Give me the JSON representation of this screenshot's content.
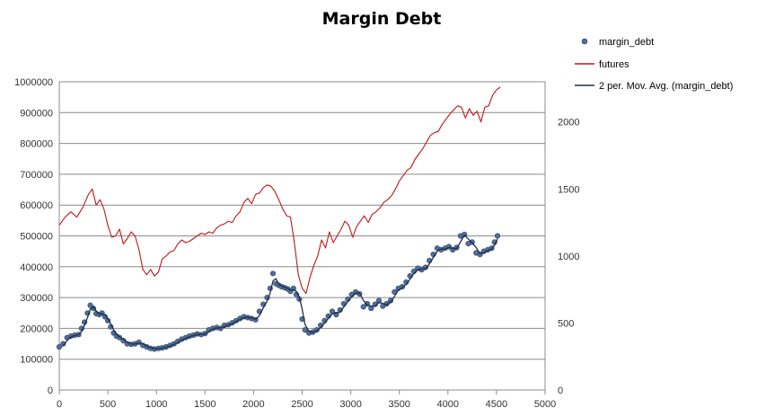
{
  "chart_data": {
    "type": "line",
    "title": "Margin Debt",
    "xlabel": "",
    "ylabel": "",
    "xlim": [
      0,
      5000
    ],
    "ylim": [
      0,
      1000000
    ],
    "y2lim": [
      0,
      2300
    ],
    "x_ticks": [
      "0",
      "500",
      "1000",
      "1500",
      "2000",
      "2500",
      "3000",
      "3500",
      "4000",
      "4500",
      "5000"
    ],
    "y_ticks": [
      "0",
      "100000",
      "200000",
      "300000",
      "400000",
      "500000",
      "600000",
      "700000",
      "800000",
      "900000",
      "1000000"
    ],
    "y2_ticks": [
      "0",
      "500",
      "1000",
      "1500",
      "2000"
    ],
    "grid": true,
    "legend_position": "top-right",
    "series": [
      {
        "name": "margin_debt",
        "axis": "left",
        "style": "markers",
        "color": "#4f6e99",
        "x": [
          0,
          40,
          80,
          120,
          160,
          200,
          230,
          260,
          290,
          320,
          350,
          380,
          410,
          440,
          470,
          500,
          530,
          560,
          590,
          620,
          660,
          700,
          740,
          780,
          820,
          860,
          900,
          940,
          980,
          1020,
          1060,
          1100,
          1140,
          1180,
          1220,
          1260,
          1300,
          1340,
          1380,
          1420,
          1460,
          1500,
          1540,
          1580,
          1620,
          1660,
          1700,
          1740,
          1780,
          1820,
          1860,
          1900,
          1940,
          1980,
          2020,
          2060,
          2100,
          2140,
          2170,
          2200,
          2230,
          2260,
          2290,
          2320,
          2350,
          2380,
          2410,
          2440,
          2470,
          2500,
          2530,
          2570,
          2610,
          2650,
          2690,
          2730,
          2770,
          2810,
          2850,
          2890,
          2930,
          2970,
          3010,
          3050,
          3090,
          3130,
          3170,
          3210,
          3250,
          3290,
          3330,
          3370,
          3410,
          3450,
          3490,
          3530,
          3570,
          3610,
          3650,
          3690,
          3730,
          3770,
          3810,
          3850,
          3890,
          3930,
          3970,
          4010,
          4050,
          4090,
          4130,
          4170,
          4210,
          4250,
          4290,
          4330,
          4370,
          4410,
          4450,
          4480,
          4510
        ],
        "values": [
          140000,
          150000,
          170000,
          175000,
          178000,
          180000,
          200000,
          220000,
          250000,
          275000,
          265000,
          248000,
          245000,
          250000,
          238000,
          225000,
          205000,
          185000,
          175000,
          170000,
          160000,
          150000,
          148000,
          150000,
          155000,
          145000,
          140000,
          135000,
          133000,
          135000,
          137000,
          140000,
          145000,
          150000,
          158000,
          165000,
          170000,
          175000,
          178000,
          182000,
          180000,
          183000,
          195000,
          200000,
          203000,
          200000,
          210000,
          212000,
          218000,
          225000,
          232000,
          238000,
          235000,
          232000,
          228000,
          255000,
          278000,
          300000,
          330000,
          378000,
          345000,
          340000,
          335000,
          332000,
          328000,
          320000,
          330000,
          310000,
          295000,
          230000,
          195000,
          185000,
          188000,
          195000,
          210000,
          225000,
          240000,
          255000,
          245000,
          260000,
          280000,
          295000,
          310000,
          318000,
          312000,
          270000,
          280000,
          265000,
          278000,
          290000,
          272000,
          280000,
          290000,
          318000,
          330000,
          335000,
          350000,
          370000,
          385000,
          395000,
          390000,
          398000,
          420000,
          440000,
          460000,
          455000,
          460000,
          465000,
          455000,
          462000,
          500000,
          505000,
          475000,
          480000,
          445000,
          440000,
          450000,
          455000,
          460000,
          480000,
          500000
        ]
      },
      {
        "name": "futures",
        "axis": "right",
        "style": "line",
        "color": "#c0161b",
        "x": [
          0,
          60,
          120,
          180,
          240,
          300,
          340,
          380,
          420,
          460,
          500,
          540,
          580,
          620,
          660,
          700,
          740,
          780,
          820,
          860,
          900,
          940,
          980,
          1020,
          1060,
          1100,
          1140,
          1180,
          1220,
          1260,
          1300,
          1340,
          1380,
          1420,
          1460,
          1500,
          1540,
          1580,
          1620,
          1660,
          1700,
          1740,
          1780,
          1820,
          1860,
          1900,
          1940,
          1980,
          2020,
          2060,
          2100,
          2140,
          2180,
          2220,
          2260,
          2300,
          2340,
          2380,
          2420,
          2460,
          2500,
          2540,
          2580,
          2620,
          2660,
          2700,
          2740,
          2780,
          2820,
          2860,
          2900,
          2940,
          2980,
          3020,
          3060,
          3100,
          3140,
          3180,
          3220,
          3260,
          3300,
          3340,
          3380,
          3420,
          3460,
          3500,
          3540,
          3580,
          3620,
          3660,
          3700,
          3740,
          3780,
          3820,
          3860,
          3900,
          3940,
          3980,
          4020,
          4060,
          4100,
          4140,
          4180,
          4220,
          4260,
          4300,
          4340,
          4380,
          4420,
          4460,
          4500,
          4540
        ],
        "values": [
          1230,
          1290,
          1330,
          1290,
          1360,
          1460,
          1500,
          1380,
          1420,
          1350,
          1230,
          1140,
          1150,
          1200,
          1090,
          1130,
          1180,
          1150,
          1050,
          900,
          860,
          900,
          850,
          880,
          980,
          1000,
          1030,
          1040,
          1090,
          1120,
          1100,
          1110,
          1130,
          1150,
          1170,
          1160,
          1180,
          1170,
          1210,
          1230,
          1240,
          1260,
          1250,
          1300,
          1330,
          1400,
          1430,
          1390,
          1460,
          1470,
          1510,
          1530,
          1520,
          1480,
          1420,
          1350,
          1300,
          1290,
          1100,
          860,
          760,
          720,
          840,
          930,
          1000,
          1120,
          1060,
          1180,
          1100,
          1150,
          1200,
          1260,
          1230,
          1140,
          1220,
          1260,
          1300,
          1250,
          1310,
          1330,
          1360,
          1400,
          1420,
          1450,
          1500,
          1560,
          1600,
          1640,
          1660,
          1720,
          1760,
          1800,
          1850,
          1900,
          1920,
          1930,
          1980,
          2020,
          2060,
          2090,
          2120,
          2110,
          2030,
          2100,
          2050,
          2080,
          2000,
          2110,
          2120,
          2200,
          2240,
          2260
        ]
      },
      {
        "name": "2 per. Mov. Avg. (margin_debt)",
        "axis": "left",
        "style": "line",
        "color": "#1f2f4a",
        "x": [
          40,
          80,
          120,
          160,
          200,
          230,
          260,
          290,
          320,
          350,
          380,
          410,
          440,
          470,
          500,
          530,
          560,
          590,
          620,
          660,
          700,
          740,
          780,
          820,
          860,
          900,
          940,
          980,
          1020,
          1060,
          1100,
          1140,
          1180,
          1220,
          1260,
          1300,
          1340,
          1380,
          1420,
          1460,
          1500,
          1540,
          1580,
          1620,
          1660,
          1700,
          1740,
          1780,
          1820,
          1860,
          1900,
          1940,
          1980,
          2020,
          2060,
          2100,
          2140,
          2170,
          2200,
          2230,
          2260,
          2290,
          2320,
          2350,
          2380,
          2410,
          2440,
          2470,
          2500,
          2530,
          2570,
          2610,
          2650,
          2690,
          2730,
          2770,
          2810,
          2850,
          2890,
          2930,
          2970,
          3010,
          3050,
          3090,
          3130,
          3170,
          3210,
          3250,
          3290,
          3330,
          3370,
          3410,
          3450,
          3490,
          3530,
          3570,
          3610,
          3650,
          3690,
          3730,
          3770,
          3810,
          3850,
          3890,
          3930,
          3970,
          4010,
          4050,
          4090,
          4130,
          4170,
          4210,
          4250,
          4290,
          4330,
          4370,
          4410,
          4450,
          4480,
          4510
        ],
        "values": [
          145000,
          160000,
          172500,
          176500,
          179000,
          190000,
          210000,
          235000,
          262500,
          270000,
          256500,
          246500,
          247500,
          244000,
          231500,
          215000,
          195000,
          180000,
          172500,
          165000,
          155000,
          149000,
          149000,
          152500,
          150000,
          142500,
          137500,
          134000,
          134000,
          136000,
          138500,
          142500,
          147500,
          154000,
          161500,
          167500,
          172500,
          176500,
          180000,
          181000,
          181500,
          189000,
          197500,
          201500,
          201500,
          205000,
          211000,
          215000,
          221500,
          228500,
          235000,
          236500,
          233500,
          230000,
          241500,
          266500,
          289000,
          315000,
          354000,
          361500,
          342500,
          337500,
          333500,
          330000,
          324000,
          325000,
          320000,
          302500,
          262500,
          212500,
          190000,
          186500,
          191500,
          202500,
          217500,
          232500,
          247500,
          250000,
          252500,
          270000,
          287500,
          302500,
          314000,
          315000,
          291000,
          275000,
          272500,
          271500,
          284000,
          281000,
          276000,
          285000,
          304000,
          324000,
          332500,
          342500,
          360000,
          377500,
          390000,
          392500,
          394000,
          409000,
          430000,
          450000,
          457500,
          457500,
          462500,
          460000,
          458500,
          481000,
          502500,
          490000,
          477500,
          462500,
          442500,
          445000,
          452500,
          457500,
          470000,
          490000
        ]
      }
    ]
  }
}
